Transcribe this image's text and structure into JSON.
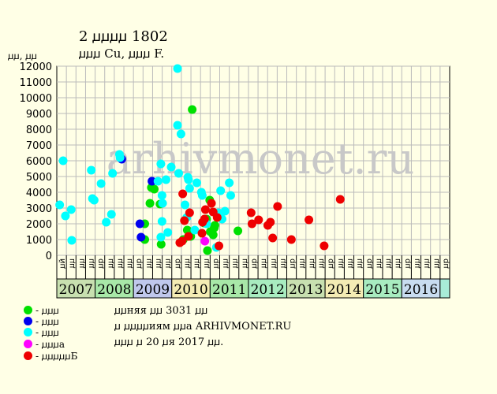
{
  "header": {
    "title": "2 ꙡꙡꙡꙡ 1802",
    "subtitle": "ꙡꙡꙡ Cu, ꙡꙡꙡ F.",
    "ylabel": "ꙡꙡ, ꙡꙡ"
  },
  "watermark": "arhivmonet.ru",
  "legend": [
    {
      "label": "- ꙡꙡꙡ",
      "color": "#00e000"
    },
    {
      "label": "- ꙡꙡꙡ",
      "color": "#0000ee"
    },
    {
      "label": "- ꙡꙡꙡ",
      "color": "#00ffff"
    },
    {
      "label": "- ꙡꙡꙡa",
      "color": "#ff00ff"
    },
    {
      "label": "- ꙡꙡꙡꙡꙡБ",
      "color": "#ee0000"
    }
  ],
  "notes": [
    "ꙡꙡняя ꙡꙡ 3031 ꙡꙡ",
    "ꙡ ꙡꙡꙡꙡиям ꙡꙡa ARHIVMONET.RU",
    "ꙡꙡꙡ ꙡ 20 ꙡя 2017 ꙡꙡ."
  ],
  "chart_data": {
    "type": "scatter",
    "title": "2 ꙡꙡꙡꙡ 1802",
    "subtitle": "ꙡꙡꙡ Cu, ꙡꙡꙡ F.",
    "ylabel": "ꙡꙡ, ꙡꙡ",
    "ylim": [
      0,
      12000
    ],
    "yticks": [
      0,
      1000,
      2000,
      3000,
      4000,
      5000,
      6000,
      7000,
      8000,
      9000,
      10000,
      11000,
      12000
    ],
    "grid": true,
    "x_quarters": [
      "ꙡй",
      "ꙡꙡ",
      "ꙡꙡ",
      "ꙡꙡ",
      "ꙡр",
      "ꙡꙡ",
      "ꙡꙡ",
      "ꙡꙡ",
      "ꙡр",
      "ꙡꙡ",
      "ꙡꙡ",
      "ꙡꙡ",
      "ꙡр",
      "ꙡꙡ",
      "ꙡꙡ",
      "ꙡꙡ",
      "ꙡр",
      "ꙡꙡ",
      "ꙡꙡ",
      "ꙡꙡ",
      "ꙡр",
      "ꙡꙡ",
      "ꙡꙡ",
      "ꙡꙡ",
      "ꙡр",
      "ꙡꙡ",
      "ꙡꙡ",
      "ꙡꙡ",
      "ꙡр",
      "ꙡꙡ",
      "ꙡꙡ",
      "ꙡꙡ",
      "ꙡр",
      "ꙡꙡ",
      "ꙡꙡ",
      "ꙡꙡ",
      "ꙡр",
      "ꙡꙡ",
      "ꙡꙡ",
      "ꙡꙡ",
      "ꙡр"
    ],
    "years": [
      {
        "label": "2007",
        "color": "#c8e0b0",
        "span": 4
      },
      {
        "label": "2008",
        "color": "#a8e8a8",
        "span": 4
      },
      {
        "label": "2009",
        "color": "#c0c8ec",
        "span": 4
      },
      {
        "label": "2010",
        "color": "#f4ecb4",
        "span": 4
      },
      {
        "label": "2011",
        "color": "#a8e8a8",
        "span": 4
      },
      {
        "label": "2012",
        "color": "#a8ecc0",
        "span": 4
      },
      {
        "label": "2013",
        "color": "#c8e0b0",
        "span": 4
      },
      {
        "label": "2014",
        "color": "#f4ecb4",
        "span": 4
      },
      {
        "label": "2015",
        "color": "#a8ecc0",
        "span": 4
      },
      {
        "label": "2016",
        "color": "#c8dcf0",
        "span": 4
      },
      {
        "label": "",
        "color": "#a8ecd8",
        "span": 1
      }
    ],
    "series": [
      {
        "color": "#00e000",
        "points": [
          [
            9.18,
            2000
          ],
          [
            9.18,
            1000
          ],
          [
            9.72,
            3300
          ],
          [
            9.87,
            4300
          ],
          [
            10.17,
            4200
          ],
          [
            10.77,
            3250
          ],
          [
            10.89,
            700
          ],
          [
            13.2,
            1000
          ],
          [
            13.62,
            1600
          ],
          [
            13.98,
            1200
          ],
          [
            14.13,
            9250
          ],
          [
            15.36,
            2050
          ],
          [
            15.63,
            2300
          ],
          [
            15.72,
            300
          ],
          [
            15.96,
            3500
          ],
          [
            16.02,
            1500
          ],
          [
            16.32,
            1300
          ],
          [
            16.44,
            1750
          ],
          [
            16.5,
            1900
          ],
          [
            18.9,
            1550
          ]
        ]
      },
      {
        "color": "#0000ee",
        "points": [
          [
            6.78,
            6100
          ],
          [
            8.67,
            2000
          ],
          [
            8.79,
            1150
          ],
          [
            9.93,
            4700
          ]
        ]
      },
      {
        "color": "#00ffff",
        "points": [
          [
            0.3,
            3200
          ],
          [
            0.66,
            6000
          ],
          [
            0.9,
            2500
          ],
          [
            1.5,
            2900
          ],
          [
            1.56,
            950
          ],
          [
            3.6,
            5400
          ],
          [
            3.72,
            3600
          ],
          [
            3.9,
            3500
          ],
          [
            4.62,
            4550
          ],
          [
            5.16,
            2100
          ],
          [
            5.7,
            2600
          ],
          [
            5.82,
            5200
          ],
          [
            6.54,
            6400
          ],
          [
            6.6,
            6200
          ],
          [
            10.56,
            4700
          ],
          [
            10.86,
            5800
          ],
          [
            10.86,
            1150
          ],
          [
            10.98,
            3800
          ],
          [
            10.98,
            2150
          ],
          [
            11.04,
            3300
          ],
          [
            11.4,
            4800
          ],
          [
            11.58,
            1450
          ],
          [
            11.94,
            5600
          ],
          [
            12.6,
            11850
          ],
          [
            12.6,
            8250
          ],
          [
            12.72,
            5200
          ],
          [
            12.96,
            7700
          ],
          [
            13.38,
            3200
          ],
          [
            13.56,
            2400
          ],
          [
            13.68,
            4950
          ],
          [
            13.74,
            4800
          ],
          [
            13.86,
            4250
          ],
          [
            14.4,
            1600
          ],
          [
            14.61,
            4600
          ],
          [
            15.09,
            4000
          ],
          [
            15.18,
            3800
          ],
          [
            15.63,
            2000
          ],
          [
            16.65,
            500
          ],
          [
            16.86,
            2700
          ],
          [
            17.1,
            4100
          ],
          [
            17.25,
            2300
          ],
          [
            17.55,
            2800
          ],
          [
            18.0,
            4600
          ],
          [
            18.15,
            3800
          ]
        ]
      },
      {
        "color": "#ff00ff",
        "points": [
          [
            15.45,
            900
          ]
        ]
      },
      {
        "color": "#ee0000",
        "points": [
          [
            12.84,
            800
          ],
          [
            13.08,
            900
          ],
          [
            13.14,
            3900
          ],
          [
            13.32,
            2200
          ],
          [
            13.74,
            1200
          ],
          [
            13.86,
            2700
          ],
          [
            15.15,
            1400
          ],
          [
            15.21,
            2100
          ],
          [
            15.42,
            2300
          ],
          [
            15.51,
            2900
          ],
          [
            16.14,
            3300
          ],
          [
            16.32,
            2750
          ],
          [
            16.74,
            2400
          ],
          [
            16.92,
            600
          ],
          [
            20.28,
            2700
          ],
          [
            20.37,
            2000
          ],
          [
            21.06,
            2250
          ],
          [
            22.02,
            1900
          ],
          [
            22.29,
            2100
          ],
          [
            22.53,
            1100
          ],
          [
            23.04,
            3100
          ],
          [
            24.48,
            1000
          ],
          [
            26.31,
            2250
          ],
          [
            27.9,
            600
          ],
          [
            29.58,
            3550
          ]
        ]
      }
    ]
  }
}
